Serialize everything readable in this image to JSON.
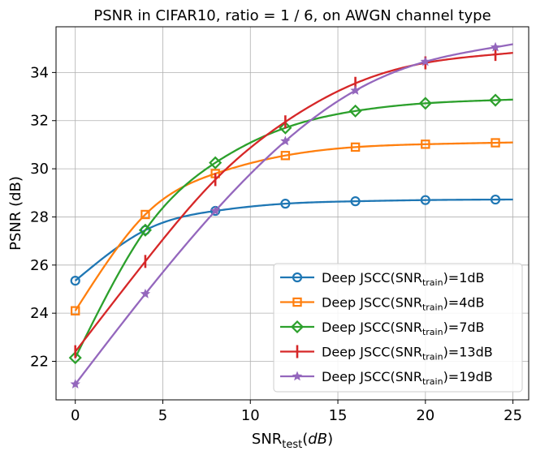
{
  "chart_data": {
    "type": "line",
    "title": "PSNR in CIFAR10, ratio = 1 / 6, on AWGN channel type",
    "xlabel_main": "SNR",
    "xlabel_sub": "test",
    "xlabel_unit_open": "(",
    "xlabel_unit": "dB",
    "xlabel_unit_close": ")",
    "ylabel": "PSNR (dB)",
    "xlim": [
      -1.1,
      25.9
    ],
    "ylim": [
      20.4,
      35.9
    ],
    "xticks": [
      0,
      5,
      10,
      15,
      20,
      25
    ],
    "yticks": [
      22,
      24,
      26,
      28,
      30,
      32,
      34
    ],
    "grid": true,
    "legend_position": "lower-right",
    "series": [
      {
        "name": "Deep JSCC(SNR_train)=1dB",
        "legend_prefix": "Deep JSCC(SNR",
        "legend_sub": "train",
        "legend_suffix": ")=1dB",
        "color": "#1f77b4",
        "marker": "circle",
        "x": [
          0,
          4,
          8,
          12,
          16,
          20,
          24
        ],
        "values": [
          25.35,
          27.45,
          28.25,
          28.55,
          28.65,
          28.7,
          28.72
        ]
      },
      {
        "name": "Deep JSCC(SNR_train)=4dB",
        "legend_prefix": "Deep JSCC(SNR",
        "legend_sub": "train",
        "legend_suffix": ")=4dB",
        "color": "#ff7f0e",
        "marker": "square",
        "x": [
          0,
          4,
          8,
          12,
          16,
          20,
          24
        ],
        "values": [
          24.1,
          28.1,
          29.8,
          30.55,
          30.9,
          31.02,
          31.08
        ]
      },
      {
        "name": "Deep JSCC(SNR_train)=7dB",
        "legend_prefix": "Deep JSCC(SNR",
        "legend_sub": "train",
        "legend_suffix": ")=7dB",
        "color": "#2ca02c",
        "marker": "diamond",
        "x": [
          0,
          4,
          8,
          12,
          16,
          20,
          24
        ],
        "values": [
          22.15,
          27.45,
          30.25,
          31.7,
          32.4,
          32.72,
          32.85
        ]
      },
      {
        "name": "Deep JSCC(SNR_train)=13dB",
        "legend_prefix": "Deep JSCC(SNR",
        "legend_sub": "train",
        "legend_suffix": ")=13dB",
        "color": "#d62728",
        "marker": "vline",
        "x": [
          0,
          4,
          8,
          12,
          16,
          20,
          24
        ],
        "values": [
          22.4,
          26.15,
          29.55,
          31.95,
          33.55,
          34.4,
          34.75
        ]
      },
      {
        "name": "Deep JSCC(SNR_train)=19dB",
        "legend_prefix": "Deep JSCC(SNR",
        "legend_sub": "train",
        "legend_suffix": ")=19dB",
        "color": "#9467bd",
        "marker": "star",
        "x": [
          0,
          4,
          8,
          12,
          16,
          20,
          24
        ],
        "values": [
          21.05,
          24.8,
          28.25,
          31.15,
          33.25,
          34.45,
          35.05
        ]
      }
    ]
  }
}
